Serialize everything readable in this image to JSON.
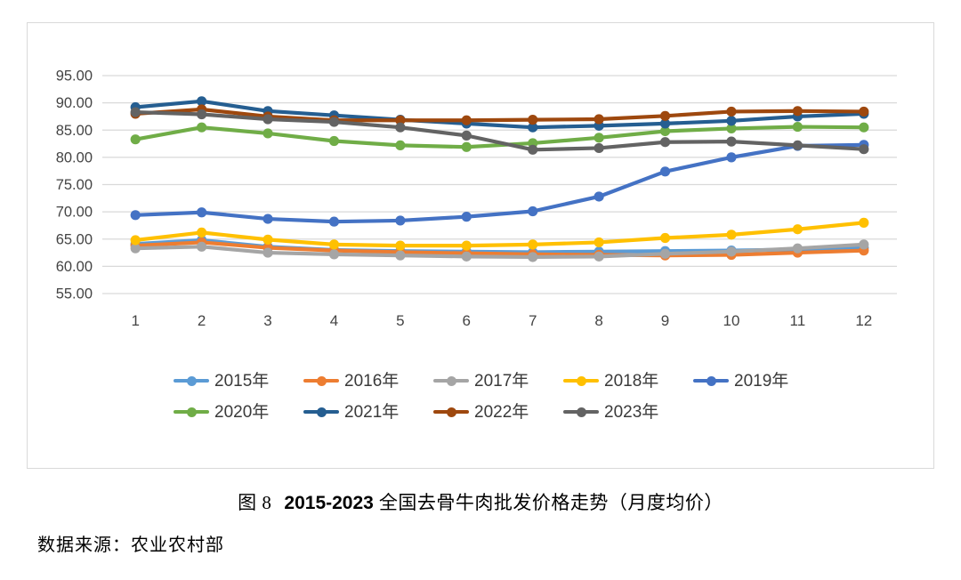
{
  "figure": {
    "caption_fig": "图 8",
    "caption_range": "2015-2023",
    "caption_text": "全国去骨牛肉批发价格走势（月度均价）",
    "source": "数据来源：农业农村部"
  },
  "chart_data": {
    "type": "line",
    "title": "图 8 2015-2023 全国去骨牛肉批发价格走势（月度均价）",
    "xlabel": "",
    "ylabel": "",
    "x": [
      1,
      2,
      3,
      4,
      5,
      6,
      7,
      8,
      9,
      10,
      11,
      12
    ],
    "ylim": [
      55,
      95
    ],
    "ytick_step": 5,
    "ytick_decimals": 2,
    "grid": true,
    "gridline_color": "#d9d9d9",
    "axis_label_color": "#444444",
    "legend_position": "bottom",
    "series": [
      {
        "name": "2015年",
        "color": "#5B9BD5",
        "values": [
          64.1,
          64.8,
          63.6,
          63.0,
          62.8,
          62.7,
          62.6,
          62.7,
          62.8,
          62.9,
          63.1,
          63.4
        ]
      },
      {
        "name": "2016年",
        "color": "#ED7D31",
        "values": [
          63.8,
          64.4,
          63.4,
          62.9,
          62.6,
          62.4,
          62.2,
          62.1,
          62.0,
          62.1,
          62.5,
          62.9
        ]
      },
      {
        "name": "2017年",
        "color": "#A5A5A5",
        "values": [
          63.3,
          63.6,
          62.5,
          62.2,
          62.0,
          61.8,
          61.7,
          61.8,
          62.3,
          62.7,
          63.3,
          64.0
        ]
      },
      {
        "name": "2018年",
        "color": "#FFC000",
        "values": [
          64.8,
          66.2,
          64.9,
          64.0,
          63.8,
          63.8,
          64.0,
          64.4,
          65.2,
          65.8,
          66.8,
          68.0
        ]
      },
      {
        "name": "2019年",
        "color": "#4472C4",
        "values": [
          69.4,
          69.9,
          68.7,
          68.2,
          68.4,
          69.1,
          70.1,
          72.8,
          77.4,
          80.0,
          82.1,
          82.3
        ]
      },
      {
        "name": "2020年",
        "color": "#70AD47",
        "values": [
          83.3,
          85.5,
          84.4,
          83.0,
          82.2,
          81.9,
          82.6,
          83.6,
          84.8,
          85.3,
          85.6,
          85.5
        ]
      },
      {
        "name": "2021年",
        "color": "#255E91",
        "values": [
          89.2,
          90.3,
          88.5,
          87.7,
          86.9,
          86.2,
          85.5,
          85.8,
          86.2,
          86.7,
          87.5,
          88.0
        ]
      },
      {
        "name": "2022年",
        "color": "#9E480E",
        "values": [
          88.0,
          88.8,
          87.5,
          86.8,
          86.8,
          86.8,
          86.9,
          87.0,
          87.6,
          88.4,
          88.5,
          88.4
        ]
      },
      {
        "name": "2023年",
        "color": "#636363",
        "values": [
          88.3,
          87.9,
          87.0,
          86.5,
          85.5,
          84.0,
          81.4,
          81.7,
          82.8,
          82.9,
          82.2,
          81.5
        ]
      }
    ]
  }
}
